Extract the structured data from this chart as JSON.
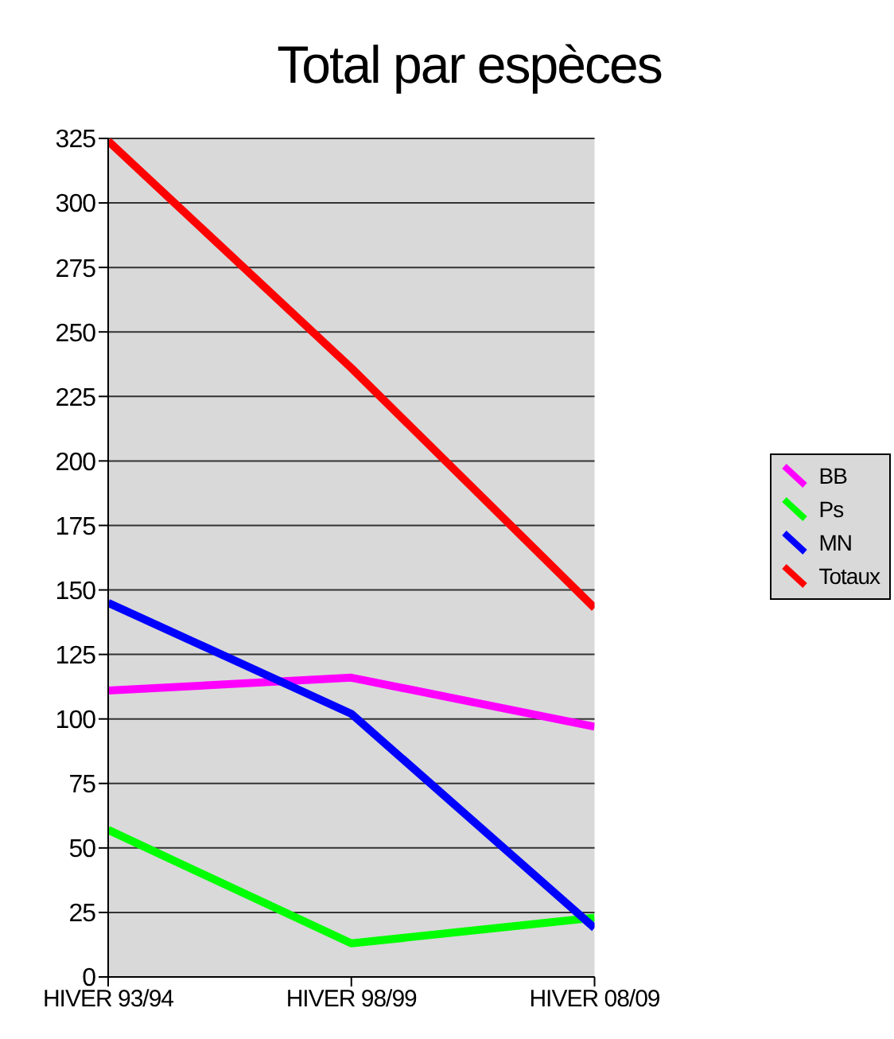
{
  "chart_data": {
    "type": "line",
    "title": "Total par espèces",
    "categories": [
      "HIVER 93/94",
      "HIVER 98/99",
      "HIVER 08/09"
    ],
    "series": [
      {
        "name": "BB",
        "color": "#ff00ff",
        "values": [
          111,
          116,
          97
        ]
      },
      {
        "name": "Ps",
        "color": "#00ff00",
        "values": [
          57,
          13,
          23
        ]
      },
      {
        "name": "MN",
        "color": "#0000ff",
        "values": [
          145,
          102,
          19
        ]
      },
      {
        "name": "Totaux",
        "color": "#ff0000",
        "values": [
          324,
          236,
          143
        ]
      }
    ],
    "ylim": [
      0,
      325
    ],
    "yticks": [
      0,
      25,
      50,
      75,
      100,
      125,
      150,
      175,
      200,
      225,
      250,
      275,
      300,
      325
    ],
    "grid": "y",
    "legend": "right",
    "marker": "none",
    "line_style": "solid"
  }
}
